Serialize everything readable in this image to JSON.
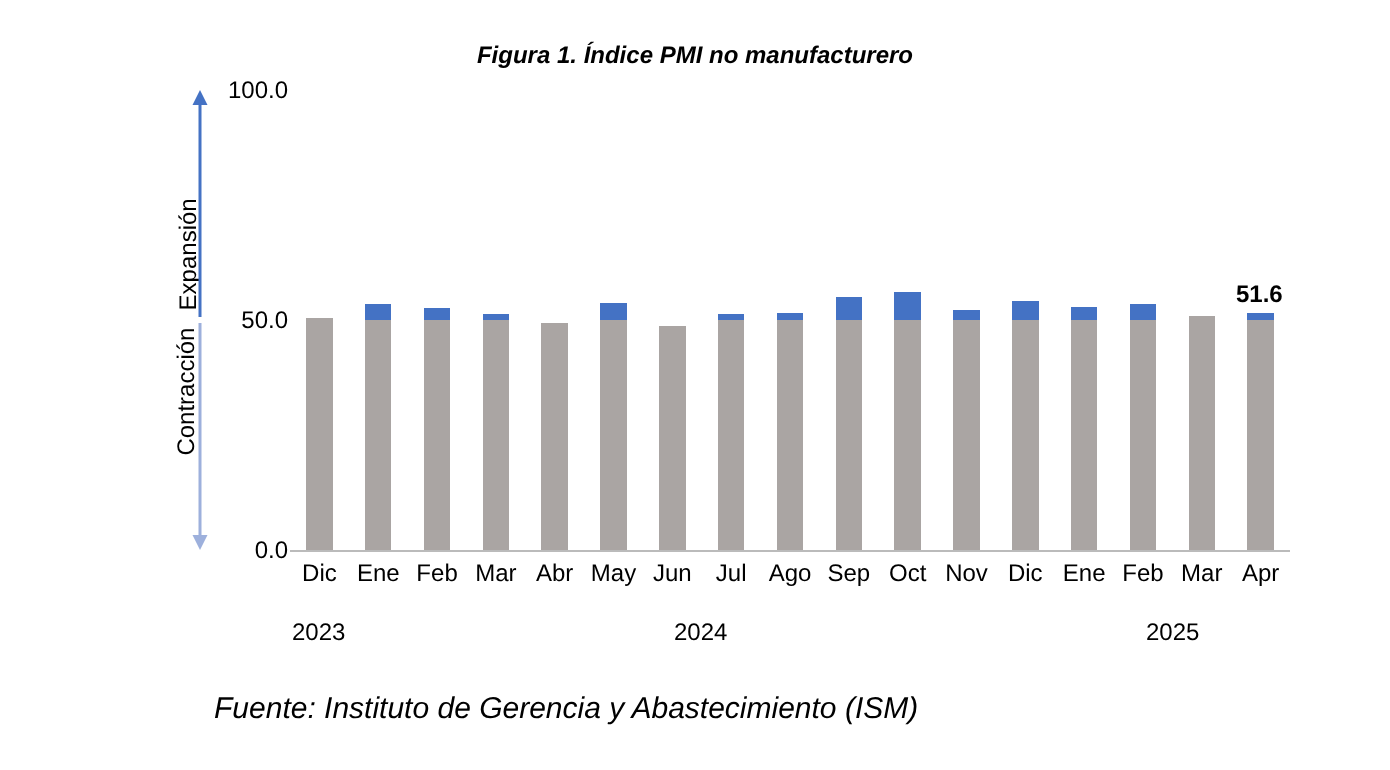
{
  "chart_data": {
    "type": "bar",
    "title": "Figura 1. Índice PMI no manufacturero",
    "stacked": true,
    "categories": [
      "Dic",
      "Ene",
      "Feb",
      "Mar",
      "Abr",
      "May",
      "Jun",
      "Jul",
      "Ago",
      "Sep",
      "Oct",
      "Nov",
      "Dic",
      "Ene",
      "Feb",
      "Mar",
      "Apr"
    ],
    "series": [
      {
        "color": "#aaa5a3",
        "values": [
          50.5,
          50,
          50,
          50,
          49.4,
          50,
          48.8,
          50,
          50,
          50,
          50,
          50,
          50,
          50,
          50,
          50.8,
          50
        ]
      },
      {
        "color": "#4472c4",
        "values": [
          null,
          3.4,
          2.6,
          1.4,
          null,
          3.8,
          null,
          1.4,
          1.5,
          4.9,
          6.0,
          2.1,
          4.1,
          2.8,
          3.5,
          null,
          1.6
        ]
      }
    ],
    "totals": [
      null,
      null,
      null,
      null,
      null,
      null,
      null,
      null,
      null,
      null,
      null,
      null,
      null,
      null,
      null,
      null,
      "51.6"
    ],
    "ylim": [
      0,
      100
    ],
    "yticks": [
      {
        "value": 0,
        "label": "0.0"
      },
      {
        "value": 50,
        "label": "50.0"
      },
      {
        "value": 100,
        "label": "100.0"
      }
    ],
    "annotations": [
      "Expansión",
      "Contracción",
      "2023",
      "2024",
      "2025",
      "Fuente: Instituto de Gerencia y Abastecimiento (ISM)"
    ]
  }
}
